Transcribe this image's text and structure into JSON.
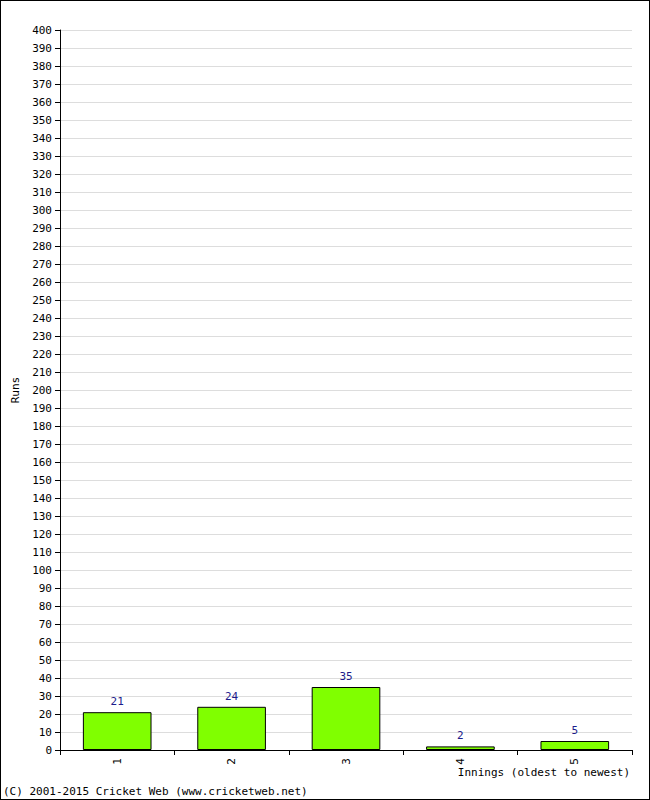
{
  "chart_data": {
    "type": "bar",
    "categories": [
      "1",
      "2",
      "3",
      "4",
      "5"
    ],
    "values": [
      21,
      24,
      35,
      2,
      5
    ],
    "color": "#80ff00",
    "x_label": "Innings (oldest to newest)",
    "y_label": "Runs",
    "annotations": [
      "(C) 2001-2015 Cricket Web (www.cricketweb.net)"
    ],
    "ylim": [
      0,
      400
    ],
    "yticks": [
      0,
      10,
      20,
      30,
      40,
      50,
      60,
      70,
      80,
      90,
      100,
      110,
      120,
      130,
      140,
      150,
      160,
      170,
      180,
      190,
      200,
      210,
      220,
      230,
      240,
      250,
      260,
      270,
      280,
      290,
      300,
      310,
      320,
      330,
      340,
      350,
      360,
      370,
      380,
      390,
      400
    ],
    "grid": true,
    "data_labels": true
  }
}
